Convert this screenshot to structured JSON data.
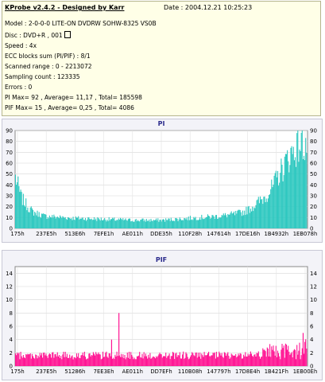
{
  "header": {
    "title": "KProbe v2.4.2 - Designed by Karr",
    "date": "Date : 2004.12.21 10:25:23"
  },
  "info": {
    "model": "Model : 2-0-0-0 LITE-ON DVDRW SOHW-8325  VS0B",
    "disc": "Disc : DVD+R , 001",
    "speed": "Speed : 4x",
    "ecc": "ECC blocks sum (PI/PIF) : 8/1",
    "scanned": "Scanned range : 0 - 2213072",
    "sampling": "Sampling count : 123335",
    "errors": "Errors : 0",
    "pi_stats": "PI Max= 92 , Average= 11,17 , Total= 185598",
    "pif_stats": "PIF Max= 15 , Average= 0,25 , Total= 4086"
  },
  "chart_data": [
    {
      "type": "area",
      "title": "PI",
      "ylim": [
        0,
        90
      ],
      "yticks": [
        0,
        10,
        20,
        30,
        40,
        50,
        60,
        70,
        80,
        90
      ],
      "xtick_labels": [
        "175h",
        "237E5h",
        "513E6h",
        "7EFE1h",
        "AE011h",
        "DDE35h",
        "110F28h",
        "147614h",
        "17DE16h",
        "1B4932h",
        "1EB078h"
      ],
      "color": "#2ec8c0",
      "grid": true,
      "series": [
        {
          "x": [
            0.0,
            0.01,
            0.02,
            0.04,
            0.06,
            0.08,
            0.1,
            0.15,
            0.2,
            0.3,
            0.4,
            0.5,
            0.55,
            0.6,
            0.65,
            0.7,
            0.75,
            0.78,
            0.8,
            0.82,
            0.85,
            0.88,
            0.9,
            0.92,
            0.94,
            0.96,
            0.98,
            1.0
          ],
          "values": [
            50,
            40,
            30,
            22,
            16,
            14,
            12,
            11,
            10,
            9,
            8,
            8,
            9,
            10,
            11,
            12,
            14,
            16,
            19,
            23,
            30,
            40,
            52,
            62,
            72,
            78,
            83,
            80
          ]
        }
      ]
    },
    {
      "type": "bar",
      "title": "PIF",
      "ylim": [
        0,
        15
      ],
      "yticks": [
        0,
        2,
        4,
        6,
        8,
        10,
        12,
        14
      ],
      "xtick_labels": [
        "175h",
        "237E5h",
        "51286h",
        "7EE3Eh",
        "AE011h",
        "DD7EFh",
        "110B08h",
        "147797h",
        "17D8E4h",
        "1B421Fh",
        "1EB00Eh"
      ],
      "color": "#ff1493",
      "grid": true,
      "base_level": 1,
      "series": [
        {
          "x": [
            0.0,
            0.1,
            0.2,
            0.3,
            0.4,
            0.5,
            0.6,
            0.7,
            0.8,
            0.85,
            0.9,
            0.95,
            1.0
          ],
          "values": [
            2,
            2,
            2,
            2,
            2,
            2,
            2,
            2,
            2,
            3,
            3,
            3,
            4
          ]
        }
      ],
      "spikes": [
        {
          "x": 0.355,
          "value": 8
        },
        {
          "x": 0.33,
          "value": 4
        },
        {
          "x": 0.985,
          "value": 5
        }
      ]
    }
  ]
}
